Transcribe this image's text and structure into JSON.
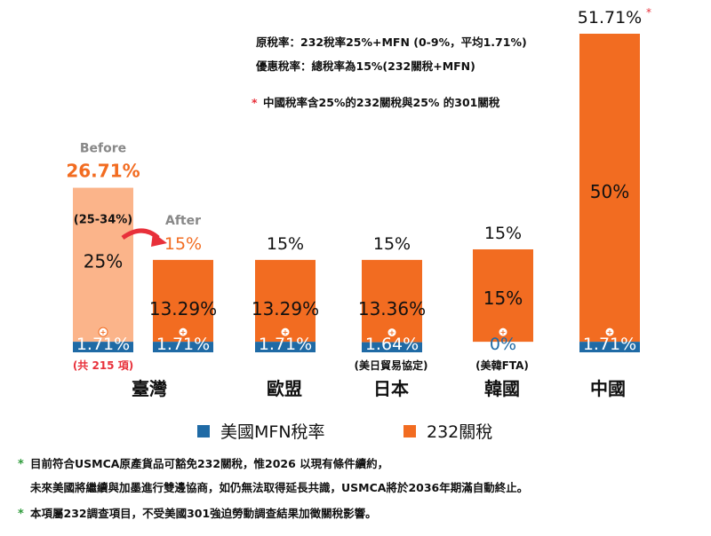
{
  "chart_data": {
    "type": "bar",
    "stacked": true,
    "ylim": [
      0,
      52
    ],
    "categories": [
      "臺灣",
      "歐盟",
      "日本",
      "韓國",
      "中國"
    ],
    "series": [
      {
        "name": "美國MFN稅率",
        "values": [
          1.71,
          1.71,
          1.64,
          0,
          1.71
        ]
      },
      {
        "name": "232關稅",
        "values": [
          13.29,
          13.29,
          13.36,
          15,
          50
        ]
      }
    ],
    "bars": [
      {
        "category": "臺灣",
        "stage": "Before",
        "mfn": 1.71,
        "tariff": 25,
        "total": 26.71,
        "mfn_label": "1.71%",
        "tariff_label": "25%",
        "total_label": "26.71%",
        "range_label": "(25-34%)",
        "stage_label": "Before",
        "light": true
      },
      {
        "category": "臺灣",
        "stage": "After",
        "mfn": 1.71,
        "tariff": 13.29,
        "total": 15,
        "mfn_label": "1.71%",
        "tariff_label": "13.29%",
        "total_label": "15%",
        "stage_label": "After",
        "light": false
      },
      {
        "category": "歐盟",
        "mfn": 1.71,
        "tariff": 13.29,
        "total": 15,
        "mfn_label": "1.71%",
        "tariff_label": "13.29%",
        "total_label": "15%",
        "light": false
      },
      {
        "category": "日本",
        "mfn": 1.64,
        "tariff": 13.36,
        "total": 15,
        "mfn_label": "1.64%",
        "tariff_label": "13.36%",
        "total_label": "15%",
        "light": false
      },
      {
        "category": "韓國",
        "mfn": 0,
        "tariff": 15,
        "total": 15,
        "mfn_label": "0%",
        "tariff_label": "15%",
        "total_label": "15%",
        "light": false
      },
      {
        "category": "中國",
        "mfn": 1.71,
        "tariff": 50,
        "total": 51.71,
        "mfn_label": "1.71%",
        "tariff_label": "50%",
        "total_label": "51.71%",
        "total_asterisk": "*",
        "light": false
      }
    ],
    "category_labels": [
      {
        "name": "臺灣",
        "sub": "(共 215 項)"
      },
      {
        "name": "歐盟",
        "sub": ""
      },
      {
        "name": "日本",
        "sub": "(美日貿易協定)"
      },
      {
        "name": "韓國",
        "sub": "(美韓FTA)"
      },
      {
        "name": "中國",
        "sub": ""
      }
    ],
    "plus_symbol": "+",
    "legend": [
      {
        "label": "美國MFN稅率",
        "color": "#1f6aa5"
      },
      {
        "label": "232關稅",
        "color": "#f26c21"
      }
    ],
    "notes_top": [
      "原稅率：232稅率25%+MFN (0-9%，平均1.71%)",
      "優惠稅率：總稅率為15%(232關稅+MFN)"
    ],
    "china_note": {
      "star": "*",
      "text": "中國稅率含25%的232關稅與25% 的301關稅"
    }
  },
  "footnotes": [
    {
      "star": "*",
      "text": "目前符合USMCA原產貨品可豁免232關稅，惟2026 以現有條件續約，"
    },
    {
      "star": "",
      "text": "未來美國將繼續與加墨進行雙邊協商，如仍無法取得延長共識，USMCA將於2036年期滿自動終止。"
    },
    {
      "star": "*",
      "text": "本項屬232調查項目，不受美國301強迫勞動調查結果加徵關稅影響。"
    }
  ],
  "colors": {
    "orange": "#f26c21",
    "light_orange": "#fbb48a",
    "blue": "#1f6aa5",
    "red": "#e8303a",
    "gray": "#888888",
    "text": "#111111"
  }
}
